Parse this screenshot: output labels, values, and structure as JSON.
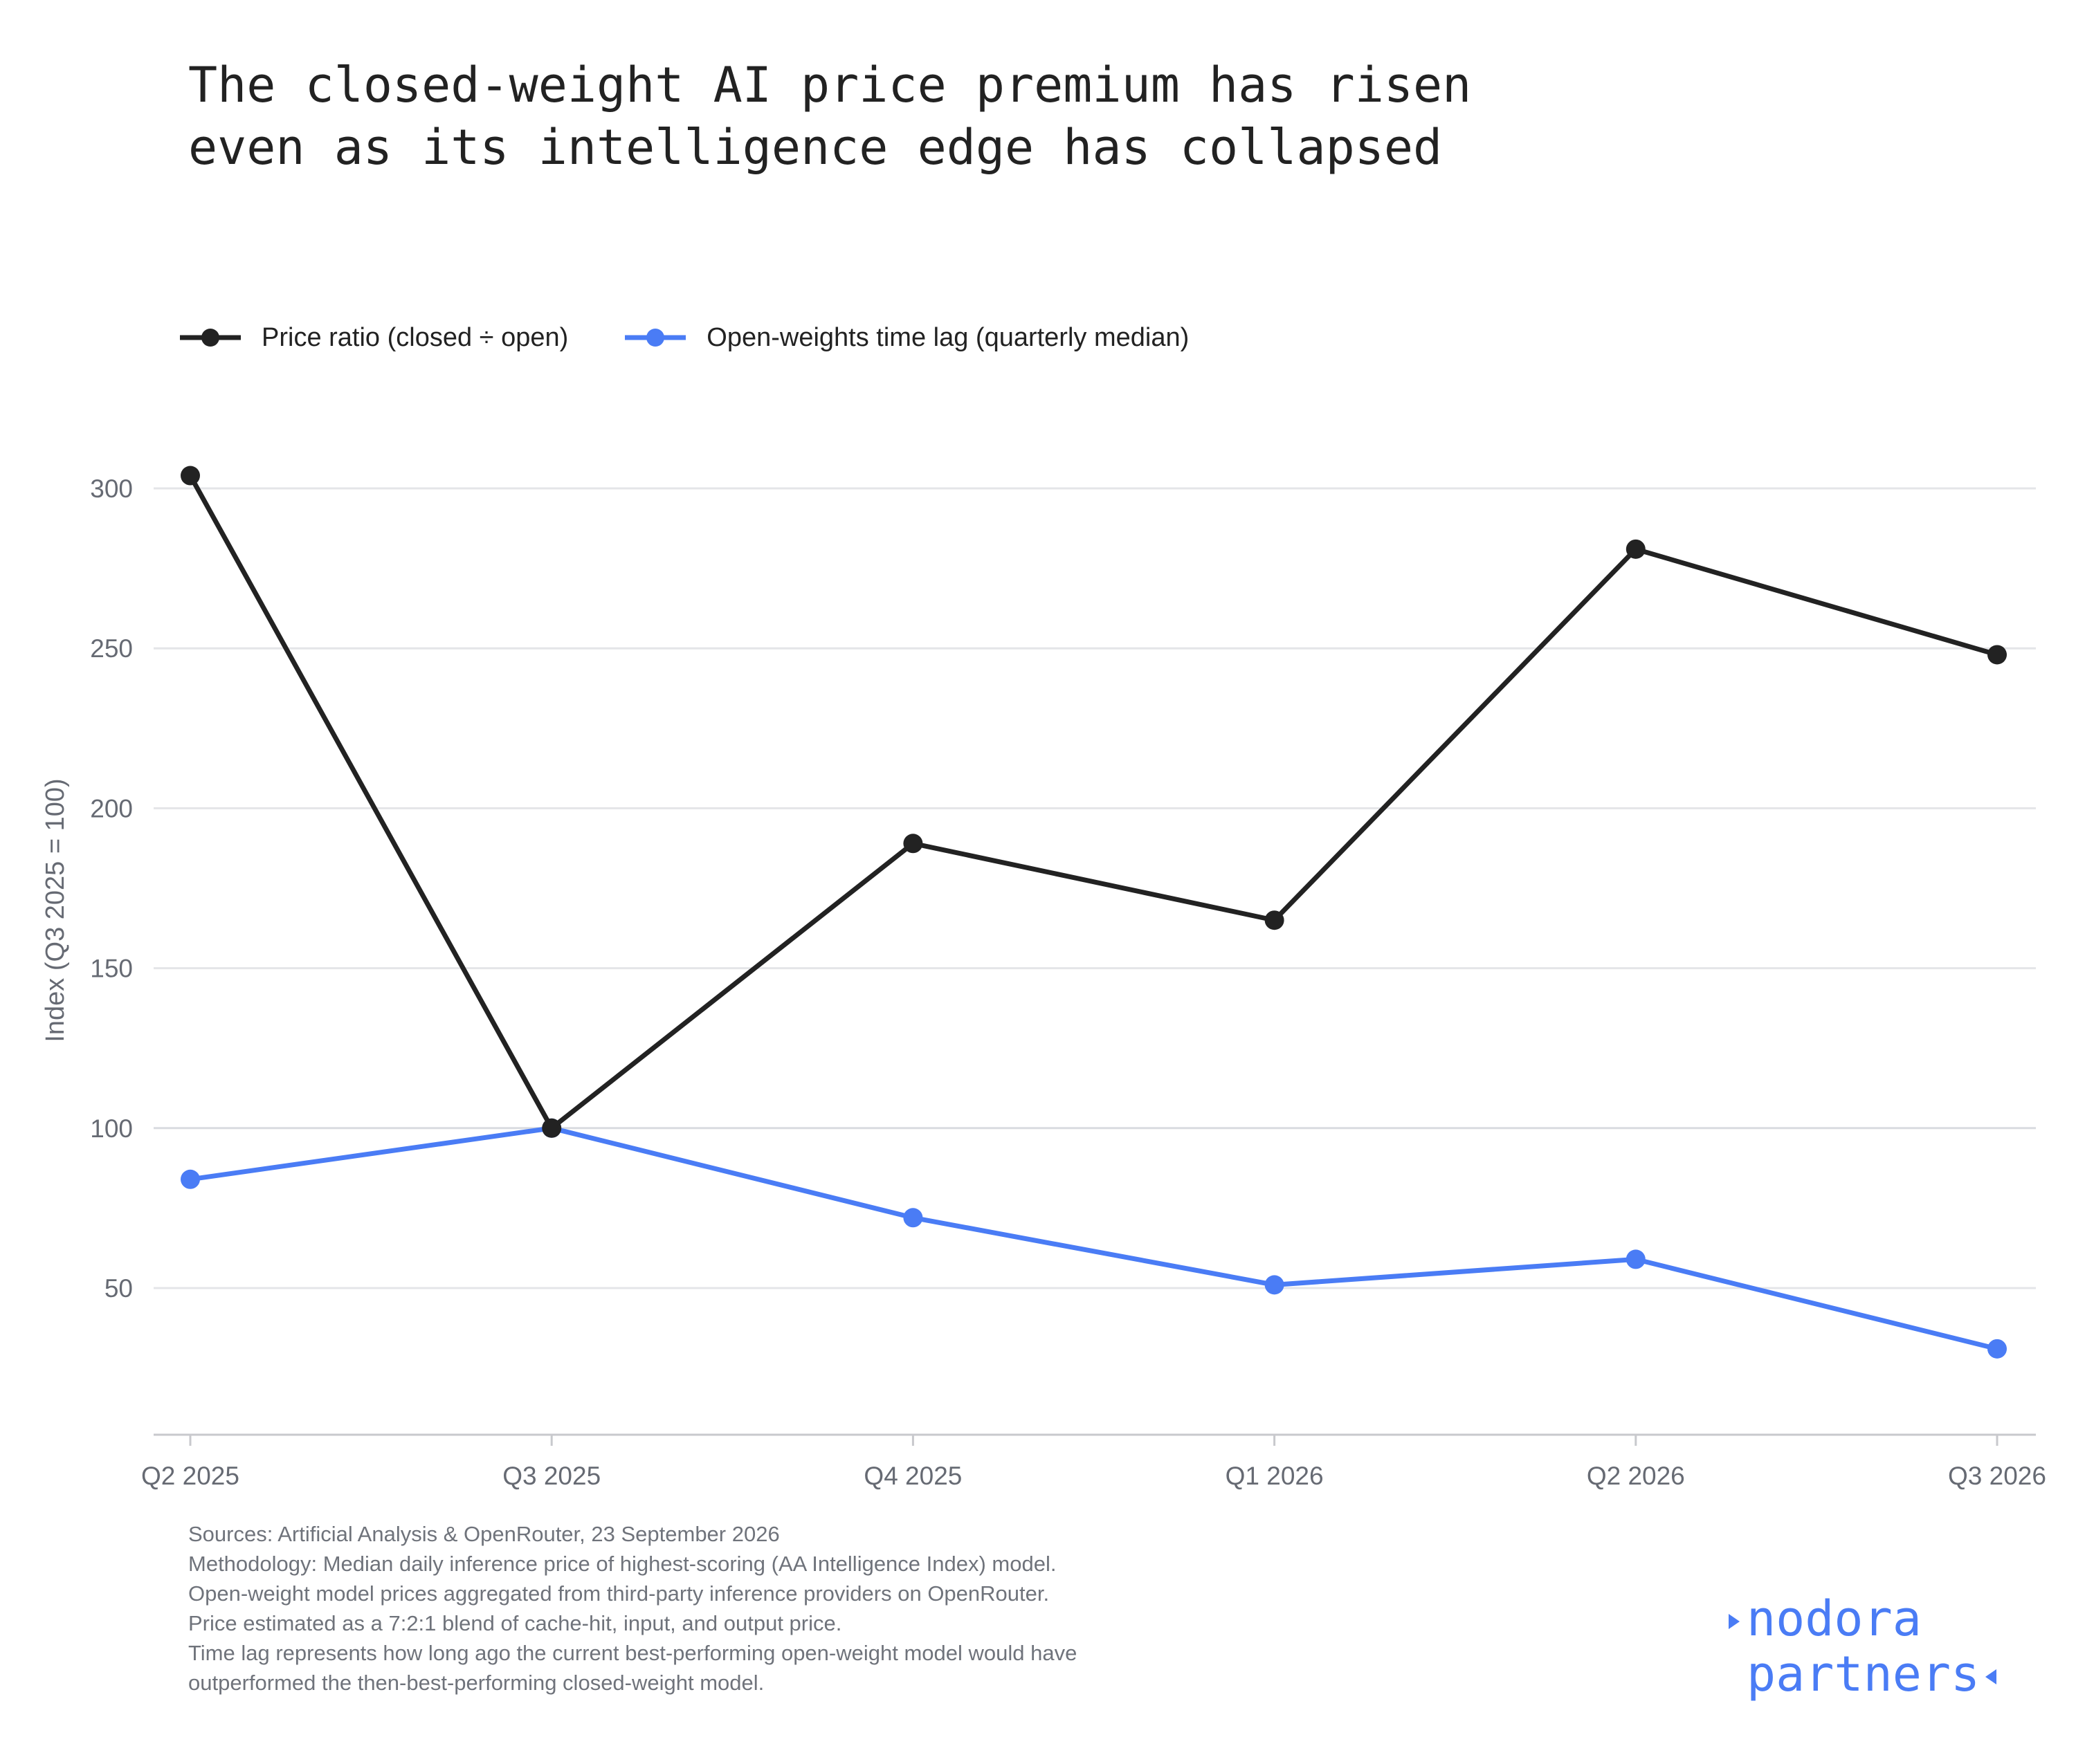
{
  "header": {
    "title_line1": "The closed-weight AI price premium has risen",
    "title_line2": "even as its intelligence edge has collapsed"
  },
  "chart_data": {
    "type": "line",
    "title": "The closed-weight AI price premium has risen even as its intelligence edge has collapsed",
    "xlabel": "",
    "ylabel": "Index (Q3 2025 = 100)",
    "categories": [
      "Q2 2025",
      "Q3 2025",
      "Q4 2025",
      "Q1 2026",
      "Q2 2026",
      "Q3 2026"
    ],
    "ylim": [
      5,
      320
    ],
    "yticks": [
      50,
      100,
      150,
      200,
      250,
      300
    ],
    "grid": true,
    "legend_position": "top-left",
    "series": [
      {
        "name": "Price ratio (closed ÷ open)",
        "color": "#222222",
        "values": [
          304,
          100,
          189,
          165,
          281,
          248
        ]
      },
      {
        "name": "Open-weights time lag (quarterly median)",
        "color": "#4a7cf5",
        "values": [
          84,
          100,
          72,
          51,
          59,
          31
        ]
      }
    ]
  },
  "footer": {
    "lines": [
      "Sources: Artificial Analysis & OpenRouter, 23 September 2026",
      "Methodology: Median daily inference price of highest-scoring (AA Intelligence Index) model.",
      "Open-weight model prices aggregated from third-party inference providers on OpenRouter.",
      "Price estimated as a 7:2:1 blend of cache-hit, input, and output price.",
      "Time lag represents how long ago the current best-performing open-weight model would have",
      "outperformed the then-best-performing closed-weight model."
    ]
  },
  "brand": {
    "line1": "nodora",
    "line2": "partners",
    "color": "#4a7cf5"
  }
}
